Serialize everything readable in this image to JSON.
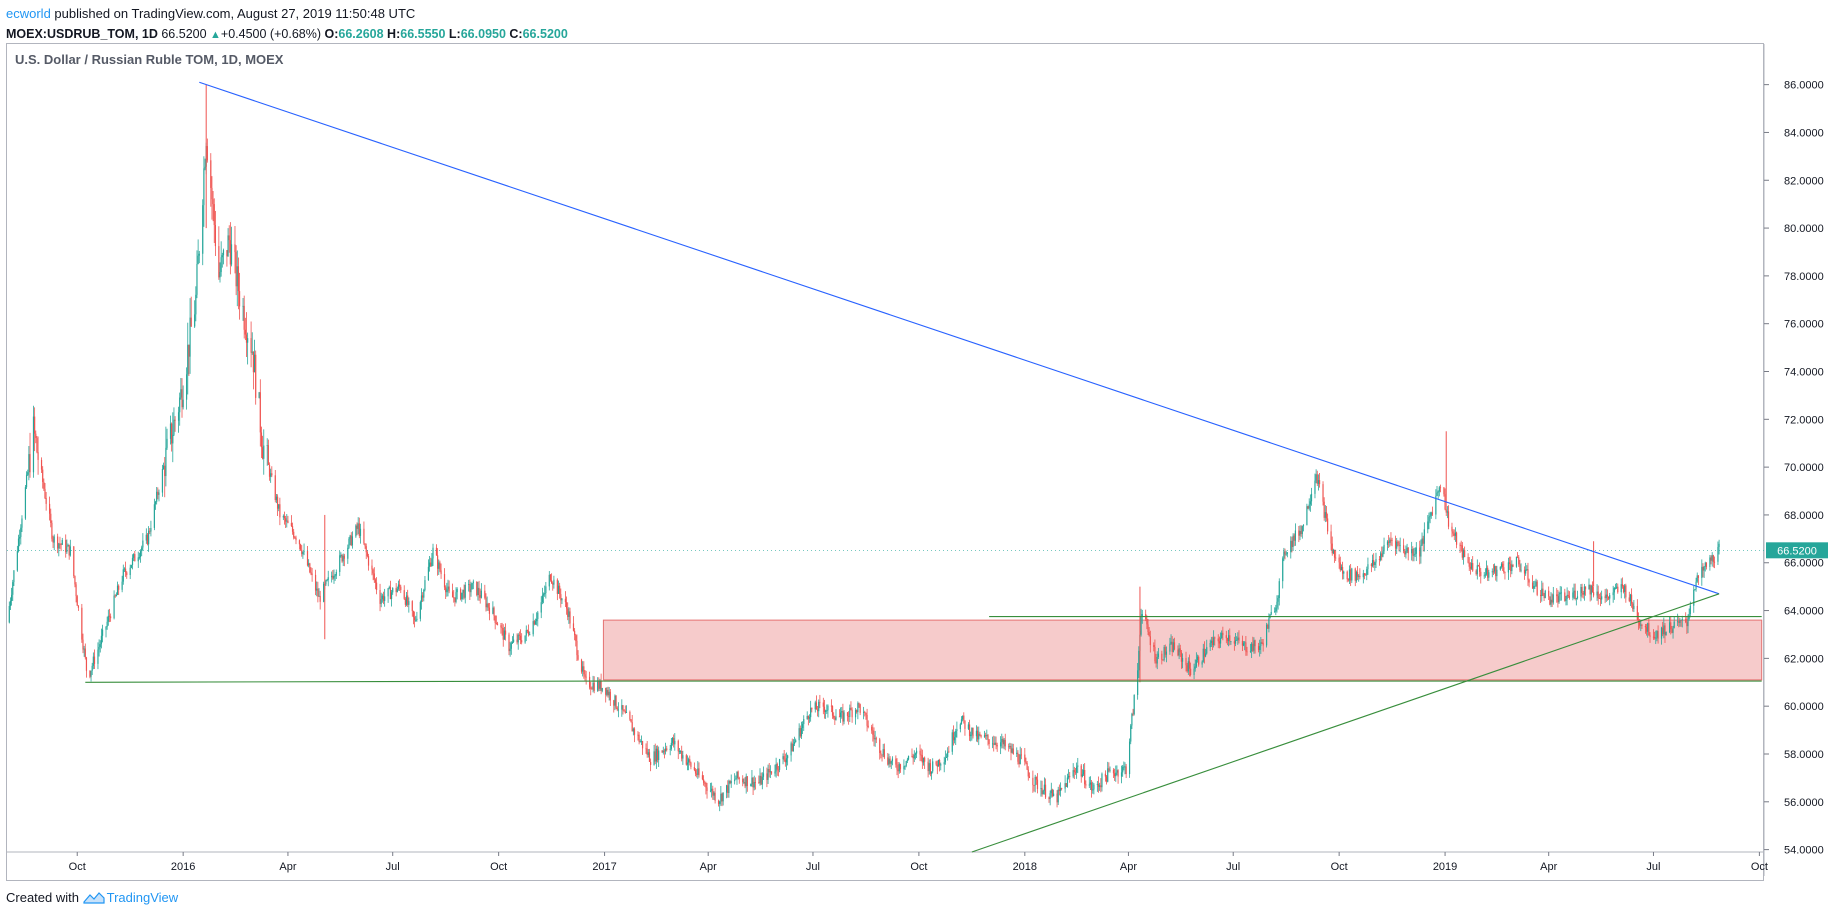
{
  "header": {
    "author": "ecworld",
    "published_text": " published on TradingView.com, August 27, 2019 11:50:48 UTC",
    "symbol_line": "MOEX:USDRUB_TOM, 1D",
    "last": "66.5200",
    "change": "+0.4500 (+0.68%)",
    "open_label": "O:",
    "open": "66.2608",
    "high_label": "H:",
    "high": "66.5550",
    "low_label": "L:",
    "low": "66.0950",
    "close_label": "C:",
    "close": "66.5200"
  },
  "footer": {
    "created_with": "Created with",
    "brand": "TradingView"
  },
  "colors": {
    "up": "#26a69a",
    "down": "#ef5350",
    "trend_blue": "#2962ff",
    "trend_green": "#388e3c",
    "zone_fill": "#f4c2c2",
    "zone_border": "#e57373",
    "price_badge": "#26a69a"
  },
  "chart_data": {
    "type": "candlestick",
    "title": "U.S. Dollar / Russian Ruble TOM, 1D, MOEX",
    "x_axis": {
      "range": [
        "2015-08-01",
        "2019-10-05"
      ],
      "ticks": [
        {
          "date": "2015-10-01",
          "label": "Oct"
        },
        {
          "date": "2016-01-01",
          "label": "2016"
        },
        {
          "date": "2016-04-01",
          "label": "Apr"
        },
        {
          "date": "2016-07-01",
          "label": "Jul"
        },
        {
          "date": "2016-10-01",
          "label": "Oct"
        },
        {
          "date": "2017-01-01",
          "label": "2017"
        },
        {
          "date": "2017-04-01",
          "label": "Apr"
        },
        {
          "date": "2017-07-01",
          "label": "Jul"
        },
        {
          "date": "2017-10-01",
          "label": "Oct"
        },
        {
          "date": "2018-01-01",
          "label": "2018"
        },
        {
          "date": "2018-04-01",
          "label": "Apr"
        },
        {
          "date": "2018-07-01",
          "label": "Jul"
        },
        {
          "date": "2018-10-01",
          "label": "Oct"
        },
        {
          "date": "2019-01-01",
          "label": "2019"
        },
        {
          "date": "2019-04-01",
          "label": "Apr"
        },
        {
          "date": "2019-07-01",
          "label": "Jul"
        },
        {
          "date": "2019-10-01",
          "label": "Oct"
        }
      ]
    },
    "y_axis": {
      "range": [
        53.9,
        87.7
      ],
      "ticks": [
        "54.0000",
        "56.0000",
        "58.0000",
        "60.0000",
        "62.0000",
        "64.0000",
        "66.0000",
        "68.0000",
        "70.0000",
        "72.0000",
        "74.0000",
        "76.0000",
        "78.0000",
        "80.0000",
        "82.0000",
        "84.0000",
        "86.0000"
      ]
    },
    "current_price": {
      "value": 66.52,
      "label": "66.5200"
    },
    "price_path": [
      [
        "2015-08-01",
        63.5
      ],
      [
        "2015-08-24",
        71.5
      ],
      [
        "2015-09-10",
        67.0
      ],
      [
        "2015-09-25",
        66.5
      ],
      [
        "2015-10-05",
        63.0
      ],
      [
        "2015-10-10",
        61.2
      ],
      [
        "2015-10-20",
        62.5
      ],
      [
        "2015-11-10",
        65.5
      ],
      [
        "2015-12-01",
        67.0
      ],
      [
        "2015-12-15",
        70.0
      ],
      [
        "2015-12-30",
        73.0
      ],
      [
        "2016-01-12",
        77.0
      ],
      [
        "2016-01-21",
        84.0
      ],
      [
        "2016-02-01",
        78.0
      ],
      [
        "2016-02-10",
        79.5
      ],
      [
        "2016-02-20",
        77.0
      ],
      [
        "2016-03-01",
        75.0
      ],
      [
        "2016-03-10",
        71.0
      ],
      [
        "2016-03-25",
        68.0
      ],
      [
        "2016-04-10",
        67.0
      ],
      [
        "2016-04-28",
        64.5
      ],
      [
        "2016-05-15",
        66.0
      ],
      [
        "2016-06-01",
        67.5
      ],
      [
        "2016-06-20",
        64.5
      ],
      [
        "2016-07-08",
        65.0
      ],
      [
        "2016-07-20",
        63.5
      ],
      [
        "2016-08-05",
        66.5
      ],
      [
        "2016-08-20",
        64.5
      ],
      [
        "2016-09-10",
        65.0
      ],
      [
        "2016-09-25",
        64.0
      ],
      [
        "2016-10-10",
        62.5
      ],
      [
        "2016-10-25",
        63.0
      ],
      [
        "2016-11-05",
        64.0
      ],
      [
        "2016-11-15",
        65.5
      ],
      [
        "2016-11-30",
        64.0
      ],
      [
        "2016-12-15",
        61.0
      ],
      [
        "2017-01-01",
        60.8
      ],
      [
        "2017-01-20",
        59.5
      ],
      [
        "2017-02-10",
        57.8
      ],
      [
        "2017-03-01",
        58.5
      ],
      [
        "2017-03-25",
        57.0
      ],
      [
        "2017-04-10",
        56.1
      ],
      [
        "2017-04-25",
        57.0
      ],
      [
        "2017-05-15",
        56.8
      ],
      [
        "2017-06-10",
        58.0
      ],
      [
        "2017-06-28",
        59.8
      ],
      [
        "2017-07-10",
        60.0
      ],
      [
        "2017-07-25",
        59.5
      ],
      [
        "2017-08-10",
        60.0
      ],
      [
        "2017-08-25",
        58.5
      ],
      [
        "2017-09-10",
        57.4
      ],
      [
        "2017-09-28",
        58.0
      ],
      [
        "2017-10-12",
        57.4
      ],
      [
        "2017-10-25",
        58.0
      ],
      [
        "2017-11-05",
        59.5
      ],
      [
        "2017-11-20",
        58.7
      ],
      [
        "2017-12-10",
        58.5
      ],
      [
        "2017-12-28",
        57.8
      ],
      [
        "2018-01-10",
        56.8
      ],
      [
        "2018-01-28",
        56.1
      ],
      [
        "2018-02-15",
        57.5
      ],
      [
        "2018-03-01",
        56.5
      ],
      [
        "2018-03-15",
        57.2
      ],
      [
        "2018-03-30",
        57.4
      ],
      [
        "2018-04-09",
        61.5
      ],
      [
        "2018-04-12",
        64.0
      ],
      [
        "2018-04-25",
        62.0
      ],
      [
        "2018-05-10",
        62.5
      ],
      [
        "2018-05-25",
        61.5
      ],
      [
        "2018-06-10",
        62.5
      ],
      [
        "2018-06-25",
        63.0
      ],
      [
        "2018-07-10",
        62.5
      ],
      [
        "2018-07-25",
        62.5
      ],
      [
        "2018-08-08",
        64.5
      ],
      [
        "2018-08-15",
        66.5
      ],
      [
        "2018-08-30",
        67.5
      ],
      [
        "2018-09-11",
        69.8
      ],
      [
        "2018-09-25",
        66.5
      ],
      [
        "2018-10-05",
        65.5
      ],
      [
        "2018-10-20",
        65.5
      ],
      [
        "2018-11-01",
        66.0
      ],
      [
        "2018-11-15",
        67.0
      ],
      [
        "2018-11-28",
        66.5
      ],
      [
        "2018-12-10",
        66.5
      ],
      [
        "2018-12-28",
        69.4
      ],
      [
        "2019-01-05",
        67.5
      ],
      [
        "2019-01-20",
        66.0
      ],
      [
        "2019-02-05",
        65.5
      ],
      [
        "2019-02-20",
        65.8
      ],
      [
        "2019-03-05",
        66.0
      ],
      [
        "2019-03-20",
        65.0
      ],
      [
        "2019-04-01",
        64.5
      ],
      [
        "2019-04-15",
        64.5
      ],
      [
        "2019-05-05",
        65.0
      ],
      [
        "2019-05-20",
        64.5
      ],
      [
        "2019-06-05",
        65.0
      ],
      [
        "2019-06-20",
        63.5
      ],
      [
        "2019-07-01",
        63.0
      ],
      [
        "2019-07-15",
        63.3
      ],
      [
        "2019-07-30",
        63.5
      ],
      [
        "2019-08-05",
        65.0
      ],
      [
        "2019-08-15",
        65.8
      ],
      [
        "2019-08-27",
        66.52
      ]
    ],
    "spikes": [
      {
        "date": "2016-01-21",
        "high": 86.0,
        "low": 80.0
      },
      {
        "date": "2019-01-02",
        "high": 71.5,
        "low": 68.5
      },
      {
        "date": "2019-05-10",
        "high": 66.9,
        "low": 65.0
      },
      {
        "date": "2016-05-03",
        "high": 68.0,
        "low": 62.8
      },
      {
        "date": "2018-04-11",
        "high": 65.0,
        "low": 61.0
      }
    ],
    "drawings": [
      {
        "name": "blue-downtrend-line",
        "type": "line",
        "color": "blue",
        "from": [
          "2016-01-15",
          86.1
        ],
        "to": [
          "2019-08-27",
          64.7
        ]
      },
      {
        "name": "green-uptrend-line",
        "type": "line",
        "color": "green",
        "from": [
          "2017-11-16",
          53.9
        ],
        "to": [
          "2019-08-27",
          64.7
        ]
      },
      {
        "name": "green-support-line-left",
        "type": "line",
        "color": "green",
        "from": [
          "2015-10-08",
          61.0
        ],
        "to": [
          "2016-12-31",
          61.05
        ]
      },
      {
        "name": "green-support-line-right",
        "type": "line",
        "color": "green",
        "from": [
          "2016-12-31",
          61.05
        ],
        "to": [
          "2019-10-03",
          61.05
        ]
      },
      {
        "name": "green-resistance-line",
        "type": "line",
        "color": "green",
        "from": [
          "2017-12-01",
          63.75
        ],
        "to": [
          "2019-10-03",
          63.75
        ]
      },
      {
        "name": "support-resistance-zone",
        "type": "rect",
        "color": "zone",
        "from": [
          "2016-12-31",
          63.6
        ],
        "to": [
          "2019-10-03",
          61.1
        ]
      }
    ]
  }
}
